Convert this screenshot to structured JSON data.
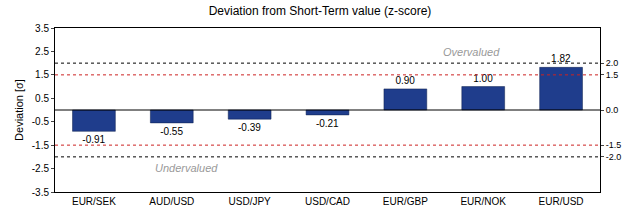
{
  "chart_data": {
    "type": "bar",
    "title": "Deviation from Short-Term value (z-score)",
    "y_label": "Deviation [σ]",
    "categories": [
      "EUR/SEK",
      "AUD/USD",
      "USD/JPY",
      "USD/CAD",
      "EUR/GBP",
      "EUR/NOK",
      "EUR/USD"
    ],
    "values": [
      -0.91,
      -0.55,
      -0.39,
      -0.21,
      0.9,
      1.0,
      1.82
    ],
    "value_labels": [
      "-0.91",
      "-0.55",
      "-0.39",
      "-0.21",
      "0.90",
      "1.00",
      "1.82"
    ],
    "data_labels": true,
    "color": "#1f3d8c",
    "ylim": [
      -3.5,
      3.5
    ],
    "yticks": [
      -3.5,
      -2.5,
      -1.5,
      -0.5,
      0.5,
      1.5,
      2.5,
      3.5
    ],
    "y2lim": [
      -3.5,
      3.5
    ],
    "y2ticks": [
      {
        "value": -2,
        "label": "-2.0"
      },
      -1.5,
      {
        "value": 0,
        "label": "0.0"
      },
      1.5,
      {
        "value": 2,
        "label": "2.0"
      }
    ],
    "grid": false,
    "annotations": [
      {
        "text": "Overvalued"
      },
      {
        "text": "Undervalued"
      }
    ]
  }
}
